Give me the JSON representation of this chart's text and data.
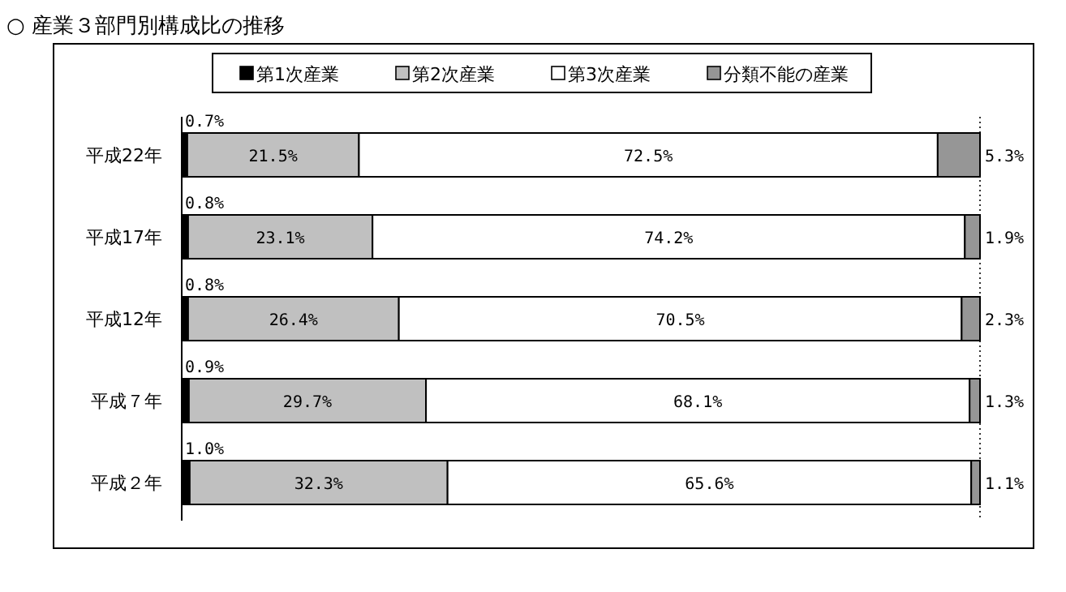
{
  "chart_data": {
    "type": "bar",
    "orientation": "horizontal",
    "stacked": true,
    "title": "○ 産業３部門別構成比の推移",
    "legend": "top",
    "categories": [
      "平成22年",
      "平成17年",
      "平成12年",
      "平成７年",
      "平成２年"
    ],
    "series": [
      {
        "name": "第1次産業",
        "color": "#000000",
        "values": [
          0.7,
          0.8,
          0.8,
          0.9,
          1.0
        ],
        "value_labels": [
          "0.7%",
          "0.8%",
          "0.8%",
          "0.9%",
          "1.0%"
        ]
      },
      {
        "name": "第2次産業",
        "color": "#c0c0c0",
        "values": [
          21.5,
          23.1,
          26.4,
          29.7,
          32.3
        ],
        "value_labels": [
          "21.5%",
          "23.1%",
          "26.4%",
          "29.7%",
          "32.3%"
        ]
      },
      {
        "name": "第3次産業",
        "color": "#ffffff",
        "values": [
          72.5,
          74.2,
          70.5,
          68.1,
          65.6
        ],
        "value_labels": [
          "72.5%",
          "74.2%",
          "70.5%",
          "68.1%",
          "65.6%"
        ]
      },
      {
        "name": "分類不能の産業",
        "color": "#969696",
        "values": [
          5.3,
          1.9,
          2.3,
          1.3,
          1.1
        ],
        "value_labels": [
          "5.3%",
          "1.9%",
          "2.3%",
          "1.3%",
          "1.1%"
        ]
      }
    ]
  }
}
